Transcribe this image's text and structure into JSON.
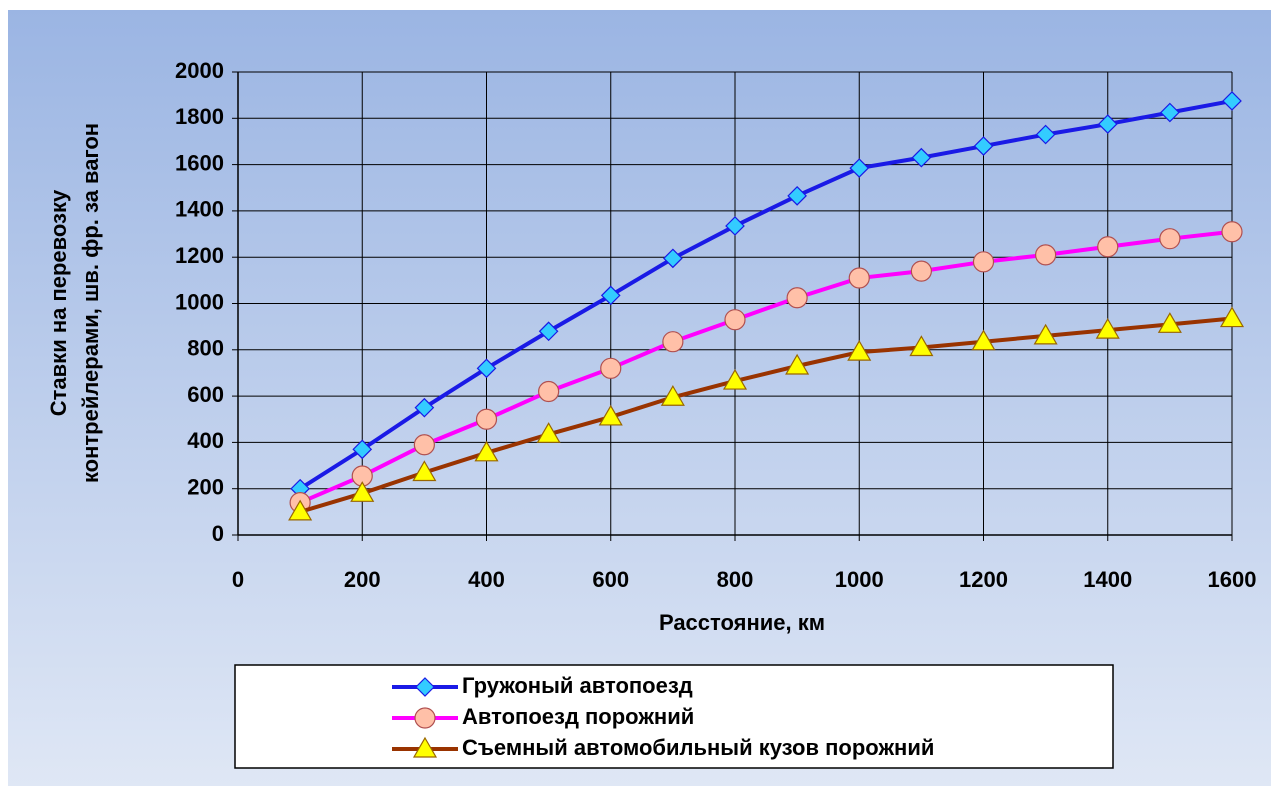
{
  "chart_data": {
    "type": "line",
    "xlabel": "Расстояние, км",
    "ylabel": [
      "Ставки на перевозку",
      "контрейлерами, шв. фр. за вагон"
    ],
    "x": [
      100,
      200,
      300,
      400,
      500,
      600,
      700,
      800,
      900,
      1000,
      1100,
      1200,
      1300,
      1400,
      1500,
      1600
    ],
    "series": [
      {
        "name": "Гружоный автопоезд",
        "color": "#1a1ae6",
        "marker": "diamond",
        "marker_color": "#33ccff",
        "values": [
          200,
          370,
          550,
          720,
          880,
          1035,
          1195,
          1335,
          1465,
          1585,
          1630,
          1680,
          1730,
          1775,
          1825,
          1875
        ]
      },
      {
        "name": "Автопоезд порожний",
        "color": "#ff00ff",
        "marker": "circle",
        "marker_color": "#ffc0a8",
        "values": [
          140,
          255,
          390,
          500,
          620,
          720,
          835,
          930,
          1025,
          1110,
          1140,
          1180,
          1210,
          1245,
          1280,
          1310
        ]
      },
      {
        "name": "Съемный автомобильный кузов порожний",
        "color": "#993300",
        "marker": "triangle",
        "marker_color": "#ffff00",
        "values": [
          100,
          180,
          270,
          355,
          435,
          510,
          595,
          665,
          730,
          790,
          810,
          835,
          860,
          885,
          910,
          935
        ]
      }
    ],
    "xlim": [
      0,
      1600
    ],
    "xticks": [
      0,
      200,
      400,
      600,
      800,
      1000,
      1200,
      1400,
      1600
    ],
    "ylim": [
      0,
      2000
    ],
    "yticks": [
      0,
      200,
      400,
      600,
      800,
      1000,
      1200,
      1400,
      1600,
      1800,
      2000
    ],
    "grid": true,
    "legend": "bottom"
  }
}
